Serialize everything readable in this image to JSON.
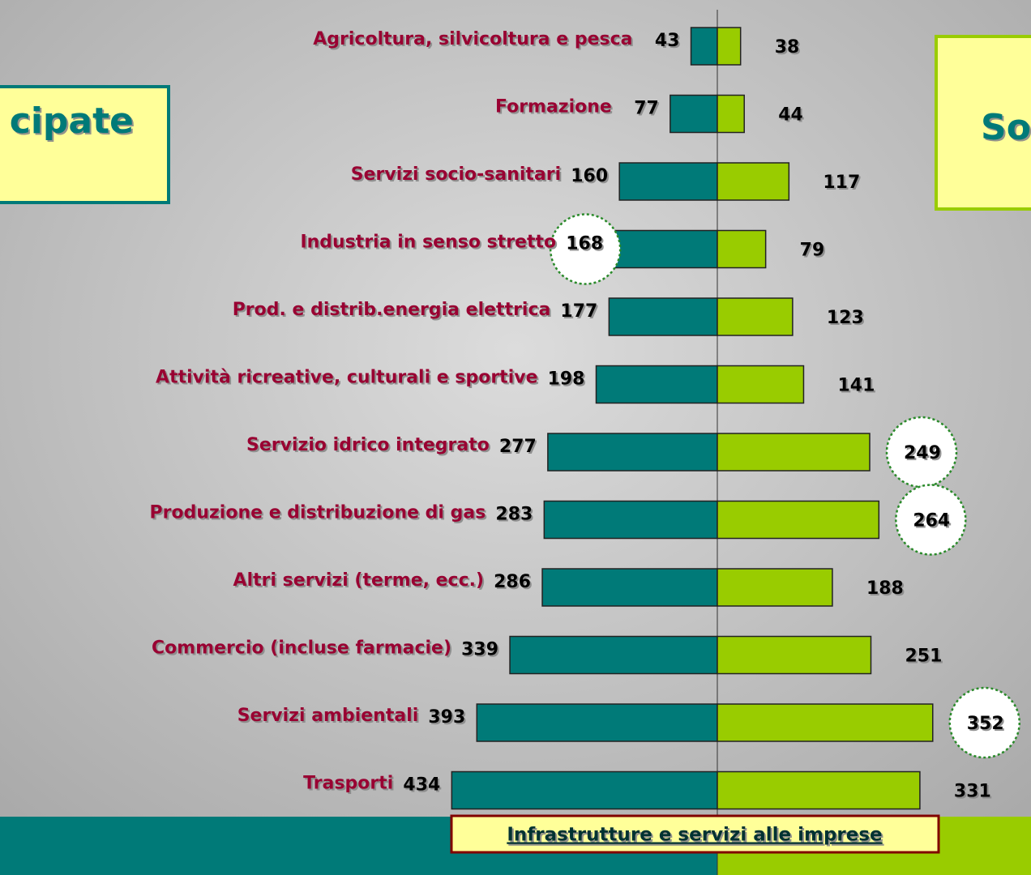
{
  "chart_data": {
    "type": "butterfly-bar",
    "left_title": "cipate",
    "right_title": "So",
    "footer": "Infrastrutture e servizi alle imprese",
    "categories": [
      "Agricoltura, silvicoltura e pesca",
      "Formazione",
      "Servizi socio-sanitari",
      "Industria in senso stretto",
      "Prod. e distrib.energia elettrica",
      "Attività ricreative, culturali e sportive",
      "Servizio idrico integrato",
      "Produzione e distribuzione di gas",
      "Altri servizi (terme, ecc.)",
      "Commercio (incluse farmacie)",
      "Servizi ambientali",
      "Trasporti"
    ],
    "series": [
      {
        "color": "#007a78",
        "values": [
          43,
          77,
          160,
          168,
          177,
          198,
          277,
          283,
          286,
          339,
          393,
          434
        ]
      },
      {
        "color": "#99cc00",
        "values": [
          38,
          44,
          117,
          79,
          123,
          141,
          249,
          264,
          188,
          251,
          352,
          331
        ]
      }
    ],
    "highlight": [
      [
        0,
        3
      ],
      [
        1,
        6
      ],
      [
        1,
        7
      ],
      [
        1,
        10
      ]
    ]
  }
}
